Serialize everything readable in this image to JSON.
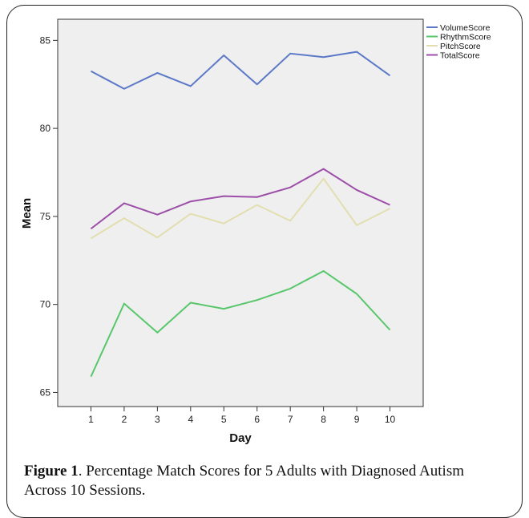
{
  "chart_data": {
    "type": "line",
    "xlabel": "Day",
    "ylabel": "Mean",
    "x": [
      1,
      2,
      3,
      4,
      5,
      6,
      7,
      8,
      9,
      10
    ],
    "xticks": [
      "1",
      "2",
      "3",
      "4",
      "5",
      "6",
      "7",
      "8",
      "9",
      "10"
    ],
    "yticks": [
      "65",
      "70",
      "75",
      "80",
      "85"
    ],
    "ylim": [
      64.2,
      86.2
    ],
    "xlim": [
      0,
      11
    ],
    "grid": false,
    "legend_position": "top-right",
    "background": "#efefef",
    "series": [
      {
        "name": "VolumeScore",
        "color": "#5b78c9",
        "values": [
          83.25,
          82.25,
          83.15,
          82.4,
          84.15,
          82.5,
          84.25,
          84.05,
          84.35,
          83.0
        ]
      },
      {
        "name": "RhythmScore",
        "color": "#58c76b",
        "values": [
          65.9,
          70.05,
          68.4,
          70.1,
          69.75,
          70.25,
          70.9,
          71.9,
          70.6,
          68.55
        ]
      },
      {
        "name": "PitchScore",
        "color": "#e3deb0",
        "values": [
          73.75,
          74.9,
          73.8,
          75.15,
          74.6,
          75.65,
          74.75,
          77.15,
          74.5,
          75.45
        ]
      },
      {
        "name": "TotalScore",
        "color": "#9c4ea8",
        "values": [
          74.3,
          75.75,
          75.1,
          75.85,
          76.15,
          76.1,
          76.65,
          77.7,
          76.5,
          75.65
        ]
      }
    ]
  },
  "caption": {
    "label": "Figure 1",
    "text": ". Percentage Match Scores for 5 Adults with Diagnosed Autism Across 10 Sessions."
  }
}
